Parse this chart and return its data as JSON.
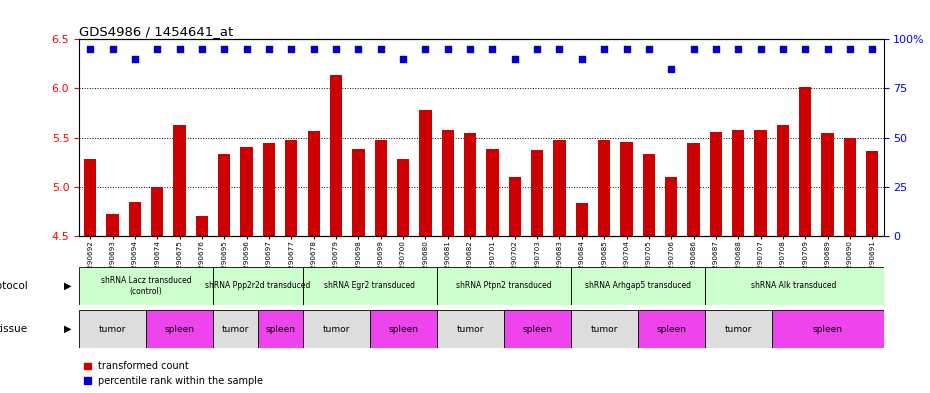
{
  "title": "GDS4986 / 1454641_at",
  "samples": [
    "GSM1290692",
    "GSM1290693",
    "GSM1290694",
    "GSM1290674",
    "GSM1290675",
    "GSM1290676",
    "GSM1290695",
    "GSM1290696",
    "GSM1290697",
    "GSM1290677",
    "GSM1290678",
    "GSM1290679",
    "GSM1290698",
    "GSM1290699",
    "GSM1290700",
    "GSM1290680",
    "GSM1290681",
    "GSM1290682",
    "GSM1290701",
    "GSM1290702",
    "GSM1290703",
    "GSM1290683",
    "GSM1290684",
    "GSM1290685",
    "GSM1290704",
    "GSM1290705",
    "GSM1290706",
    "GSM1290686",
    "GSM1290687",
    "GSM1290688",
    "GSM1290707",
    "GSM1290708",
    "GSM1290709",
    "GSM1290689",
    "GSM1290690",
    "GSM1290691"
  ],
  "bar_values": [
    5.28,
    4.72,
    4.84,
    5.0,
    5.63,
    4.7,
    5.33,
    5.4,
    5.44,
    5.47,
    5.57,
    6.14,
    5.38,
    5.47,
    5.28,
    5.78,
    5.58,
    5.55,
    5.38,
    5.1,
    5.37,
    5.48,
    4.83,
    5.48,
    5.45,
    5.33,
    5.1,
    5.44,
    5.56,
    5.58,
    5.58,
    5.63,
    6.01,
    5.55,
    5.5,
    5.36
  ],
  "percentile_values": [
    95,
    95,
    90,
    95,
    95,
    95,
    95,
    95,
    95,
    95,
    95,
    95,
    95,
    95,
    90,
    95,
    95,
    95,
    95,
    90,
    95,
    95,
    90,
    95,
    95,
    95,
    85,
    95,
    95,
    95,
    95,
    95,
    95,
    95,
    95,
    95
  ],
  "ylim_left": [
    4.5,
    6.5
  ],
  "ylim_right": [
    0,
    100
  ],
  "yticks_left": [
    4.5,
    5.0,
    5.5,
    6.0,
    6.5
  ],
  "yticks_right": [
    0,
    25,
    50,
    75,
    100
  ],
  "bar_color": "#cc0000",
  "dot_color": "#0000cc",
  "bar_width": 0.55,
  "protocols": [
    {
      "label": "shRNA Lacz transduced\n(control)",
      "start": 0,
      "end": 6,
      "color": "#ccffcc"
    },
    {
      "label": "shRNA Ppp2r2d transduced",
      "start": 6,
      "end": 10,
      "color": "#ccffcc"
    },
    {
      "label": "shRNA Egr2 transduced",
      "start": 10,
      "end": 16,
      "color": "#ccffcc"
    },
    {
      "label": "shRNA Ptpn2 transduced",
      "start": 16,
      "end": 22,
      "color": "#ccffcc"
    },
    {
      "label": "shRNA Arhgap5 transduced",
      "start": 22,
      "end": 28,
      "color": "#ccffcc"
    },
    {
      "label": "shRNA Alk transduced",
      "start": 28,
      "end": 36,
      "color": "#ccffcc"
    }
  ],
  "tissues": [
    {
      "label": "tumor",
      "start": 0,
      "end": 3,
      "color": "#dddddd"
    },
    {
      "label": "spleen",
      "start": 3,
      "end": 6,
      "color": "#ee44ee"
    },
    {
      "label": "tumor",
      "start": 6,
      "end": 8,
      "color": "#dddddd"
    },
    {
      "label": "spleen",
      "start": 8,
      "end": 10,
      "color": "#ee44ee"
    },
    {
      "label": "tumor",
      "start": 10,
      "end": 13,
      "color": "#dddddd"
    },
    {
      "label": "spleen",
      "start": 13,
      "end": 16,
      "color": "#ee44ee"
    },
    {
      "label": "tumor",
      "start": 16,
      "end": 19,
      "color": "#dddddd"
    },
    {
      "label": "spleen",
      "start": 19,
      "end": 22,
      "color": "#ee44ee"
    },
    {
      "label": "tumor",
      "start": 22,
      "end": 25,
      "color": "#dddddd"
    },
    {
      "label": "spleen",
      "start": 25,
      "end": 28,
      "color": "#ee44ee"
    },
    {
      "label": "tumor",
      "start": 28,
      "end": 31,
      "color": "#dddddd"
    },
    {
      "label": "spleen",
      "start": 31,
      "end": 36,
      "color": "#ee44ee"
    }
  ],
  "protocol_label": "protocol",
  "tissue_label": "tissue",
  "legend_items": [
    {
      "label": "transformed count",
      "color": "#cc0000"
    },
    {
      "label": "percentile rank within the sample",
      "color": "#0000cc"
    }
  ],
  "bg_color": "#ffffff"
}
